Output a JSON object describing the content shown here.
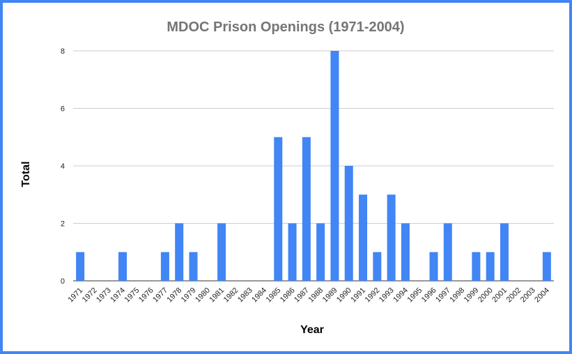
{
  "colors": {
    "bar": "#4285f4",
    "border": "#4285f4",
    "grid": "#cccccc",
    "title": "#757575"
  },
  "chart_data": {
    "type": "bar",
    "title": "MDOC Prison Openings (1971-2004)",
    "xlabel": "Year",
    "ylabel": "Total",
    "ylim": [
      0,
      8
    ],
    "yticks": [
      "0",
      "2",
      "4",
      "6",
      "8"
    ],
    "grid": true,
    "categories": [
      "1971",
      "1972",
      "1973",
      "1974",
      "1975",
      "1976",
      "1977",
      "1978",
      "1979",
      "1980",
      "1981",
      "1982",
      "1983",
      "1984",
      "1985",
      "1986",
      "1987",
      "1988",
      "1989",
      "1990",
      "1991",
      "1992",
      "1993",
      "1994",
      "1995",
      "1996",
      "1997",
      "1998",
      "1999",
      "2000",
      "2001",
      "2002",
      "2003",
      "2004"
    ],
    "values": [
      1,
      0,
      0,
      1,
      0,
      0,
      1,
      2,
      1,
      0,
      2,
      0,
      0,
      0,
      5,
      2,
      5,
      2,
      8,
      4,
      3,
      1,
      3,
      2,
      0,
      1,
      2,
      0,
      1,
      1,
      2,
      0,
      0,
      1
    ]
  }
}
